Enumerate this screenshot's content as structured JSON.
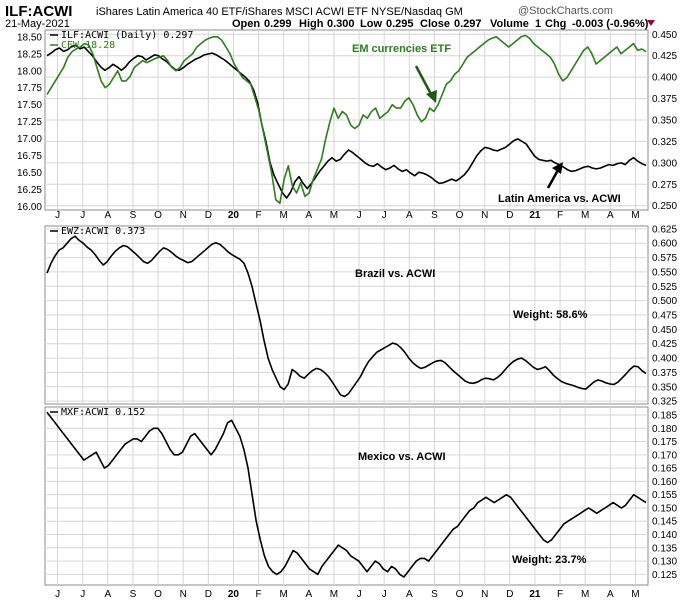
{
  "header": {
    "symbol": "ILF:ACWI",
    "description": "iShares Latin America 40 ETF/iShares MSCI ACWI ETF  NYSE/Nasdaq GM",
    "date": "21-May-2021",
    "open_label": "Open",
    "open_value": "0.299",
    "high_label": "High",
    "high_value": "0.300",
    "low_label": "Low",
    "low_value": "0.295",
    "close_label": "Close",
    "close_value": "0.297",
    "volume_label": "Volume",
    "volume_value": "1",
    "chg_label": "Chg",
    "chg_value": "-0.003 (-0.96%)",
    "watermark": "@StockCharts.com",
    "down_color": "#a00020"
  },
  "colors": {
    "green": "#2e7d1e",
    "black": "#000000",
    "grid": "#d6d6d6",
    "frame": "#8c8c8c"
  },
  "x_axis": {
    "month_labels": [
      "J",
      "J",
      "A",
      "S",
      "O",
      "N",
      "D",
      "20",
      "F",
      "M",
      "A",
      "M",
      "J",
      "J",
      "A",
      "S",
      "O",
      "N",
      "D",
      "21",
      "F",
      "M",
      "A",
      "M"
    ]
  },
  "chart_data": [
    {
      "type": "line",
      "panel": "top",
      "legend": [
        "ILF:ACWI (Daily) 0.297",
        "CEW 18.28"
      ],
      "title_annotations": [
        "EM currencies ETF",
        "Latin America vs. ACWI"
      ],
      "series": [
        {
          "name": "ILF:ACWI",
          "axis": "right",
          "color": "black",
          "values": [
            0.425,
            0.428,
            0.432,
            0.434,
            0.43,
            0.432,
            0.436,
            0.437,
            0.433,
            0.435,
            0.43,
            0.425,
            0.418,
            0.412,
            0.408,
            0.411,
            0.415,
            0.412,
            0.408,
            0.412,
            0.418,
            0.422,
            0.425,
            0.424,
            0.42,
            0.423,
            0.426,
            0.425,
            0.421,
            0.418,
            0.413,
            0.409,
            0.408,
            0.411,
            0.415,
            0.418,
            0.421,
            0.423,
            0.426,
            0.427,
            0.428,
            0.426,
            0.423,
            0.42,
            0.416,
            0.412,
            0.408,
            0.404,
            0.4,
            0.395,
            0.385,
            0.37,
            0.345,
            0.325,
            0.3,
            0.285,
            0.275,
            0.265,
            0.259,
            0.266,
            0.278,
            0.284,
            0.276,
            0.27,
            0.276,
            0.283,
            0.29,
            0.296,
            0.302,
            0.306,
            0.302,
            0.304,
            0.31,
            0.315,
            0.312,
            0.308,
            0.304,
            0.3,
            0.297,
            0.296,
            0.299,
            0.295,
            0.292,
            0.294,
            0.297,
            0.293,
            0.29,
            0.292,
            0.288,
            0.285,
            0.289,
            0.288,
            0.286,
            0.283,
            0.279,
            0.276,
            0.277,
            0.279,
            0.281,
            0.279,
            0.282,
            0.286,
            0.292,
            0.3,
            0.308,
            0.314,
            0.318,
            0.317,
            0.315,
            0.314,
            0.316,
            0.318,
            0.322,
            0.326,
            0.328,
            0.325,
            0.322,
            0.315,
            0.308,
            0.304,
            0.303,
            0.302,
            0.303,
            0.3,
            0.298,
            0.295,
            0.292,
            0.29,
            0.291,
            0.293,
            0.295,
            0.296,
            0.294,
            0.293,
            0.294,
            0.296,
            0.298,
            0.297,
            0.299,
            0.3,
            0.298,
            0.303,
            0.306,
            0.302,
            0.299,
            0.297
          ]
        },
        {
          "name": "CEW",
          "axis": "left",
          "color": "green",
          "values": [
            17.65,
            17.75,
            17.85,
            17.95,
            18.05,
            18.2,
            18.28,
            18.32,
            18.35,
            18.4,
            18.38,
            18.25,
            18.05,
            17.85,
            17.75,
            17.8,
            17.9,
            18.0,
            17.85,
            17.85,
            17.92,
            18.05,
            18.1,
            18.15,
            18.12,
            18.15,
            18.18,
            18.2,
            18.22,
            18.15,
            18.05,
            18.0,
            18.05,
            18.15,
            18.2,
            18.25,
            18.35,
            18.4,
            18.45,
            18.48,
            18.5,
            18.5,
            18.45,
            18.35,
            18.25,
            18.1,
            18.0,
            17.9,
            17.85,
            17.8,
            17.6,
            17.4,
            17.1,
            16.8,
            16.5,
            16.1,
            16.05,
            16.4,
            16.6,
            16.3,
            16.2,
            16.35,
            16.15,
            16.2,
            16.4,
            16.55,
            16.7,
            17.0,
            17.25,
            17.45,
            17.3,
            17.4,
            17.35,
            17.2,
            17.15,
            17.2,
            17.35,
            17.3,
            17.4,
            17.45,
            17.3,
            17.35,
            17.4,
            17.5,
            17.45,
            17.45,
            17.55,
            17.6,
            17.5,
            17.35,
            17.25,
            17.3,
            17.45,
            17.4,
            17.5,
            17.65,
            17.8,
            17.85,
            17.95,
            18.0,
            18.1,
            18.2,
            18.25,
            18.3,
            18.35,
            18.4,
            18.45,
            18.48,
            18.5,
            18.45,
            18.4,
            18.35,
            18.4,
            18.45,
            18.5,
            18.52,
            18.48,
            18.4,
            18.35,
            18.3,
            18.25,
            18.2,
            18.1,
            17.95,
            17.85,
            17.9,
            18.0,
            18.1,
            18.2,
            18.3,
            18.35,
            18.25,
            18.1,
            18.15,
            18.2,
            18.25,
            18.3,
            18.35,
            18.25,
            18.3,
            18.35,
            18.4,
            18.3,
            18.32,
            18.28
          ]
        }
      ],
      "left_axis": {
        "min": 15.95,
        "max": 18.6,
        "ticks": [
          "18.50",
          "18.25",
          "18.00",
          "17.75",
          "17.50",
          "17.25",
          "17.00",
          "16.75",
          "16.50",
          "16.25",
          "16.00"
        ]
      },
      "right_axis": {
        "min": 0.245,
        "max": 0.455,
        "ticks": [
          "0.450",
          "0.425",
          "0.400",
          "0.375",
          "0.350",
          "0.325",
          "0.300",
          "0.275",
          "0.250"
        ]
      }
    },
    {
      "type": "line",
      "panel": "middle",
      "legend": [
        "EWZ:ACWI 0.373"
      ],
      "annotations": [
        "Brazil vs. ACWI",
        "Weight: 58.6%"
      ],
      "series": [
        {
          "name": "EWZ:ACWI",
          "color": "black",
          "values": [
            0.548,
            0.565,
            0.578,
            0.588,
            0.592,
            0.6,
            0.608,
            0.612,
            0.605,
            0.6,
            0.593,
            0.588,
            0.58,
            0.57,
            0.562,
            0.568,
            0.578,
            0.586,
            0.592,
            0.596,
            0.594,
            0.588,
            0.582,
            0.575,
            0.568,
            0.565,
            0.57,
            0.578,
            0.586,
            0.592,
            0.589,
            0.584,
            0.578,
            0.573,
            0.57,
            0.566,
            0.568,
            0.574,
            0.58,
            0.586,
            0.592,
            0.598,
            0.601,
            0.598,
            0.592,
            0.585,
            0.58,
            0.576,
            0.572,
            0.565,
            0.548,
            0.525,
            0.495,
            0.465,
            0.43,
            0.4,
            0.38,
            0.365,
            0.35,
            0.345,
            0.355,
            0.38,
            0.375,
            0.368,
            0.365,
            0.372,
            0.378,
            0.382,
            0.38,
            0.375,
            0.368,
            0.358,
            0.347,
            0.336,
            0.333,
            0.338,
            0.348,
            0.358,
            0.368,
            0.382,
            0.394,
            0.402,
            0.41,
            0.414,
            0.418,
            0.422,
            0.426,
            0.424,
            0.418,
            0.41,
            0.4,
            0.392,
            0.386,
            0.382,
            0.384,
            0.388,
            0.392,
            0.395,
            0.396,
            0.392,
            0.385,
            0.378,
            0.372,
            0.366,
            0.36,
            0.357,
            0.356,
            0.358,
            0.362,
            0.365,
            0.364,
            0.362,
            0.366,
            0.372,
            0.38,
            0.388,
            0.394,
            0.398,
            0.4,
            0.396,
            0.39,
            0.384,
            0.38,
            0.382,
            0.385,
            0.378,
            0.37,
            0.364,
            0.359,
            0.356,
            0.354,
            0.352,
            0.349,
            0.347,
            0.346,
            0.352,
            0.358,
            0.362,
            0.36,
            0.357,
            0.355,
            0.354,
            0.358,
            0.365,
            0.372,
            0.38,
            0.386,
            0.385,
            0.378,
            0.373
          ]
        }
      ],
      "right_axis": {
        "min": 0.32,
        "max": 0.63,
        "ticks": [
          "0.625",
          "0.600",
          "0.575",
          "0.550",
          "0.525",
          "0.500",
          "0.475",
          "0.450",
          "0.425",
          "0.400",
          "0.375",
          "0.350",
          "0.325"
        ]
      }
    },
    {
      "type": "line",
      "panel": "bottom",
      "legend": [
        "MXF:ACWI 0.152"
      ],
      "annotations": [
        "Mexico vs. ACWI",
        "Weight: 23.7%"
      ],
      "series": [
        {
          "name": "MXF:ACWI",
          "color": "black",
          "values": [
            0.186,
            0.184,
            0.182,
            0.18,
            0.178,
            0.176,
            0.174,
            0.172,
            0.17,
            0.168,
            0.169,
            0.17,
            0.171,
            0.168,
            0.165,
            0.166,
            0.168,
            0.17,
            0.172,
            0.174,
            0.175,
            0.176,
            0.176,
            0.175,
            0.177,
            0.179,
            0.18,
            0.18,
            0.178,
            0.175,
            0.172,
            0.17,
            0.17,
            0.171,
            0.174,
            0.177,
            0.178,
            0.176,
            0.174,
            0.172,
            0.17,
            0.172,
            0.175,
            0.178,
            0.182,
            0.183,
            0.18,
            0.177,
            0.172,
            0.165,
            0.155,
            0.145,
            0.138,
            0.132,
            0.128,
            0.126,
            0.125,
            0.126,
            0.128,
            0.131,
            0.134,
            0.133,
            0.131,
            0.129,
            0.127,
            0.126,
            0.125,
            0.128,
            0.13,
            0.132,
            0.134,
            0.136,
            0.135,
            0.134,
            0.132,
            0.131,
            0.13,
            0.128,
            0.126,
            0.128,
            0.13,
            0.129,
            0.127,
            0.126,
            0.128,
            0.127,
            0.125,
            0.124,
            0.126,
            0.128,
            0.13,
            0.131,
            0.131,
            0.13,
            0.132,
            0.134,
            0.136,
            0.138,
            0.14,
            0.142,
            0.143,
            0.145,
            0.147,
            0.149,
            0.15,
            0.152,
            0.153,
            0.154,
            0.153,
            0.152,
            0.153,
            0.154,
            0.155,
            0.154,
            0.152,
            0.15,
            0.148,
            0.146,
            0.144,
            0.142,
            0.14,
            0.138,
            0.137,
            0.138,
            0.14,
            0.142,
            0.144,
            0.145,
            0.146,
            0.147,
            0.148,
            0.149,
            0.15,
            0.149,
            0.148,
            0.149,
            0.15,
            0.151,
            0.152,
            0.151,
            0.15,
            0.151,
            0.153,
            0.155,
            0.154,
            0.153,
            0.152
          ]
        }
      ],
      "right_axis": {
        "min": 0.121,
        "max": 0.188,
        "ticks": [
          "0.185",
          "0.180",
          "0.175",
          "0.170",
          "0.165",
          "0.160",
          "0.155",
          "0.150",
          "0.145",
          "0.140",
          "0.135",
          "0.130",
          "0.125"
        ]
      }
    }
  ]
}
